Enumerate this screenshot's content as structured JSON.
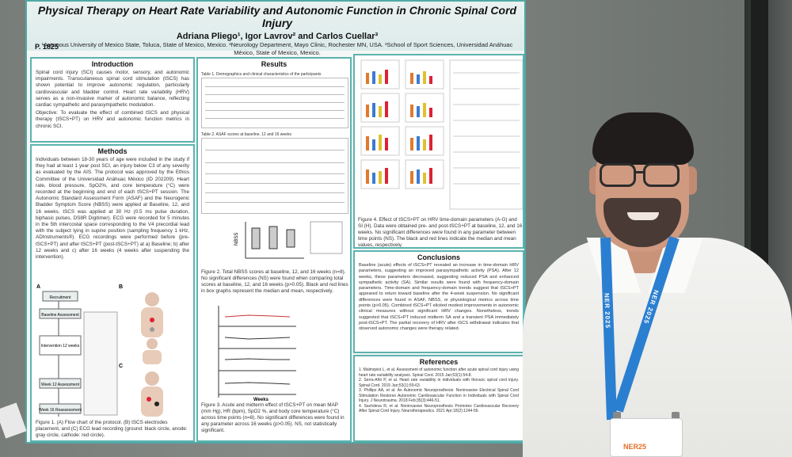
{
  "poster": {
    "title": "Physical Therapy on Heart Rate Variability and Autonomic Function in Chronic Spinal Cord Injury",
    "authors": "Adriana Pliego¹, Igor Lavrov² and Carlos Cuellar³",
    "affiliations": "¹Autonous University of Mexico State, Toluca, State of Mexico, Mexico. ²Neurology Department, Mayo Clinic, Rochester MN, USA. ³School of Sport Sciences, Universidad Anáhuac México, State of Mexico, Mexico.",
    "poster_id": "P. 1825",
    "introduction": {
      "title": "Introduction",
      "body": "Spinal cord injury (SCI) causes motor, sensory, and autonomic impairments. Transcutaneous spinal cord stimulation (tSCS) has shown potential to improve autonomic regulation, particularly cardiovascular and bladder control. Heart rate variability (HRV) serves as a non-invasive marker of autonomic balance, reflecting cardiac sympathetic and parasympathetic modulation.",
      "objective": "Objective: To evaluate the effect of combined tSCS and physical therapy (tSCS+PT) on HRV and autonomic function metrics in chronic SCI."
    },
    "methods": {
      "title": "Methods",
      "body": "Individuals between 18-30 years of age were included in the study if they had at least 1 year post SCI, an injury below C3 of any severity as evaluated by the AIS. The protocol was approved by the Ethics Committee of the Universidad Anáhuac México (ID 202209). Heart rate, blood pressure, SpO2%, and core temperature (°C) were recorded at the beginning and end of each tSCS+PT session. The Autonomic Standard Assessment Form (ASAF) and the Neurogenic Bladder Symptom Score (NBSS) were applied at Baseline, 12, and 16 weeks. tSCS was applied at 30 Hz (0.5 ms pulse duration, biphasic pulses, DS8R Digitimer). ECG were recorded for 5 minutes in the 5th intercostal space corresponding to the V4 precordial lead with the subject lying in supine position (sampling frequency 1 kHz, ADInstruments®). ECG recordings were performed before (pre-tSCS+PT) and after tSCS+PT (post-tSCS+PT) at a) Baseline; b) after 12 weeks and c) after 16 weeks (4 weeks after suspending the intervention).",
      "flow": [
        "Recruitment",
        "Baseline Assessment",
        "Intervention 12 weeks",
        "Week 12 Assessment",
        "Week 16 Reassessment"
      ],
      "figure_caption": "Figure 1. (A) Flow chart of the protocol. (B) tSCS electrodes placement, and (C) ECG lead recording (ground: black circle, anode: gray circle, cathode: red circle)."
    },
    "results": {
      "title": "Results",
      "table1_title": "Table 1. Demographics and clinical characteristics of the participants",
      "table2_title": "Table 2. ASAF scores at baseline, 12 and 16 weeks",
      "nbss_label": "NBSS",
      "weeks_label": "Weeks",
      "figure2_caption": "Figure 2. Total NBSS scores at baseline, 12, and 16 weeks (n=8). No significant differences (NS) were found when comparing total scores at baseline, 12, and 16 weeks (p>0.05). Black and red lines in box graphs represent the median and mean, respectively.",
      "figure3_caption": "Figure 3. Acute and midterm effect of tSCS+PT on mean MAP (mm Hg), HR (bpm), SpO2 %, and body core temperature (°C) across time points (n=8). No significant differences were found in any parameter across 16 weeks (p>0.05). NS, not statistically significant.",
      "figure4_caption": "Figure 4. Effect of tSCS+PT on HRV time-domain parameters (A-G) and SI (H). Data were obtained pre- and post-tSCS+PT at baseline, 12, and 16 weeks. No significant differences were found in any parameter between time points (NS). The black and red lines indicate the median and mean values, respectively."
    },
    "conclusions": {
      "title": "Conclusions",
      "body": "Baseline (acute) effects of tSCS+PT revealed an increase in time-domain HRV parameters, suggesting an improved parasympathetic activity (PSA). After 12 weeks, these parameters decreased, suggesting reduced PSA and enhanced sympathetic activity (SA). Similar results were found with frequency-domain parameters. Time-domain and frequency-domain trends suggest that tSCS+PT appeared to return toward baseline after the 4-week suspension. No significant differences were found in ASAF, NBSS, or physiological metrics across time points (p>0.05). Combined tSCS+PT elicited modest improvements in autonomic clinical measures without significant HRV changes. Nonetheless, trends suggested that tSCS+PT induced midterm SA and a transient PSA immediately post-tSCS+PT. The partial recovery of HRV after tSCS withdrawal indicates that observed autonomic changes were therapy related."
    },
    "references": {
      "title": "References",
      "items": [
        "1. Malmqvist L, et al. Assessment of autonomic function after acute spinal cord injury using heart rate variability analyses. Spinal Cord. 2015 Jan;53(1):54-8.",
        "2. Serra-Añó P, et al. Heart rate variability in individuals with thoracic spinal cord injury. Spinal Cord. 2015 Jan;53(1):59-63.",
        "3. Phillips AA, et al. An Autonomic Neuroprosthesis: Noninvasive Electrical Spinal Cord Stimulation Restores Autonomic Cardiovascular Function in Individuals with Spinal Cord Injury. J Neurotrauma. 2018 Feb;35(3):446-51.",
        "4. Sachdeva R, et al. Noninvasive Neuroprosthesis Promotes Cardiovascular Recovery After Spinal Cord Injury. Neurotherapeutics. 2021 Apr;18(2):1244-56."
      ]
    }
  },
  "lanyard": {
    "text": "NER 2025"
  },
  "badge": {
    "text": "NER25"
  },
  "colors": {
    "poster_border": "#4fa9a6",
    "lanyard": "#2b7fd0"
  }
}
